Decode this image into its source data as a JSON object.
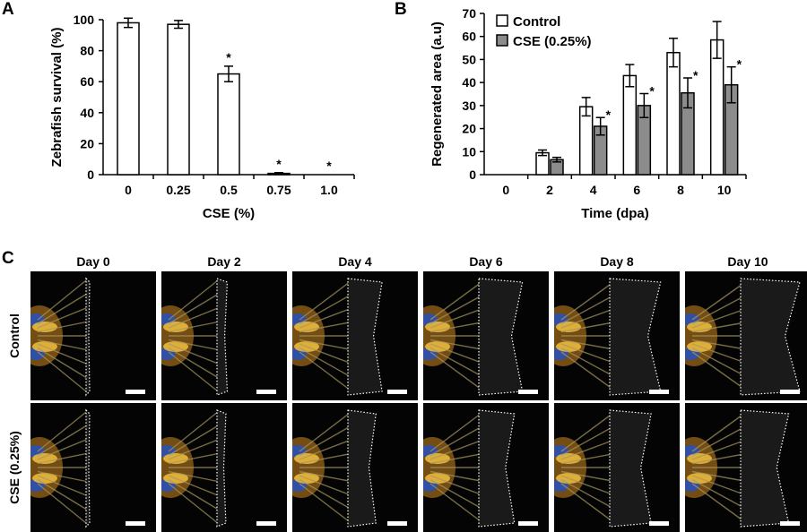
{
  "panels": {
    "a": "A",
    "b": "B",
    "c": "C"
  },
  "chart_data": [
    {
      "type": "bar",
      "categories": [
        "0",
        "0.25",
        "0.5",
        "0.75",
        "1.0"
      ],
      "values": [
        98,
        97,
        65,
        0.8,
        0
      ],
      "errors": [
        3,
        2.5,
        5,
        0.5,
        0
      ],
      "significance": [
        "",
        "",
        "*",
        "*",
        "*"
      ],
      "xlabel": "CSE (%)",
      "ylabel": "Zebrafish survival (%)",
      "ylim": [
        0,
        100
      ],
      "yticks": [
        0,
        20,
        40,
        60,
        80,
        100
      ],
      "bar_color": "#ffffff"
    },
    {
      "type": "bar",
      "categories": [
        "0",
        "2",
        "4",
        "6",
        "8",
        "10"
      ],
      "series": [
        {
          "name": "Control",
          "values": [
            0,
            9.5,
            29.5,
            43,
            53,
            58.5
          ],
          "errors": [
            0,
            1.2,
            4,
            4.8,
            6.2,
            8
          ],
          "color": "#ffffff"
        },
        {
          "name": "CSE (0.25%)",
          "values": [
            0,
            6.5,
            21,
            30,
            35.5,
            39
          ],
          "errors": [
            0,
            1,
            3.8,
            5.2,
            6.5,
            7.8
          ],
          "color": "#8c8c8c"
        }
      ],
      "significance": [
        "",
        "",
        "*",
        "*",
        "*",
        "*"
      ],
      "xlabel": "Time (dpa)",
      "ylabel": "Regenerated area (a.u)",
      "ylim": [
        0,
        70
      ],
      "yticks": [
        0,
        10,
        20,
        30,
        40,
        50,
        60,
        70
      ],
      "legend": "top-left"
    }
  ],
  "panel_c": {
    "days": [
      "Day 0",
      "Day 2",
      "Day 4",
      "Day 6",
      "Day 8",
      "Day 10"
    ],
    "rows": [
      "Control",
      "CSE (0.25%)"
    ]
  }
}
